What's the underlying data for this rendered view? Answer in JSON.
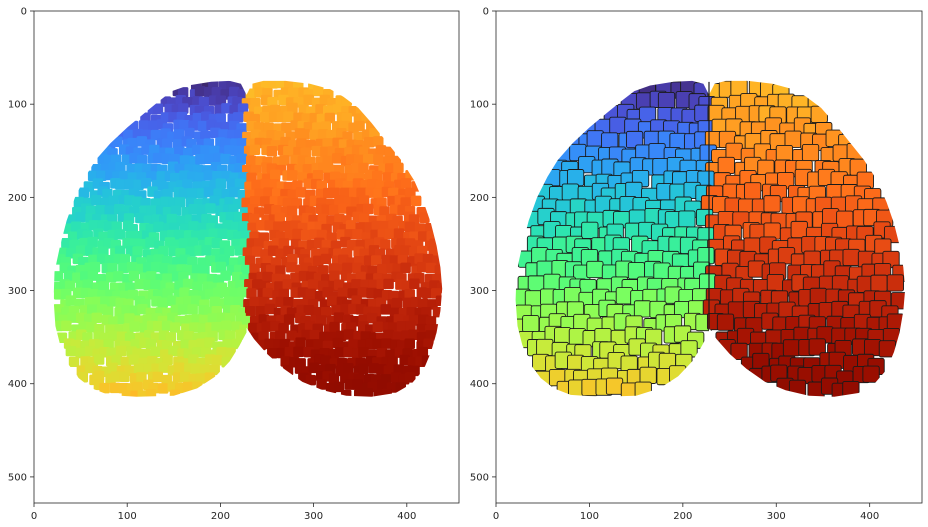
{
  "chart_data": [
    {
      "type": "heatmap",
      "description_kind": "image",
      "title": "",
      "xlabel": "",
      "ylabel": "",
      "xlim": [
        0,
        456
      ],
      "ylim": [
        528,
        0
      ],
      "xticks": [
        0,
        100,
        200,
        300,
        400
      ],
      "yticks": [
        0,
        100,
        200,
        300,
        400,
        500
      ],
      "xtick_labels": [
        "0",
        "100",
        "200",
        "300",
        "400"
      ],
      "ytick_labels": [
        "0",
        "100",
        "200",
        "300",
        "400",
        "500"
      ],
      "colormap": "turbo",
      "cell_borders": false,
      "hemispheres": {
        "left": {
          "x_range": [
            22,
            228
          ],
          "y_range": [
            72,
            414
          ],
          "color_start": "#30123b",
          "color_end": "#a4fc3c"
        },
        "right": {
          "x_range": [
            228,
            436
          ],
          "y_range": [
            72,
            414
          ],
          "color_start": "#a4fc3c",
          "color_end": "#7a0403"
        }
      }
    },
    {
      "type": "heatmap",
      "description_kind": "image",
      "title": "",
      "xlabel": "",
      "ylabel": "",
      "xlim": [
        0,
        456
      ],
      "ylim": [
        528,
        0
      ],
      "xticks": [
        0,
        100,
        200,
        300,
        400
      ],
      "yticks": [
        0,
        100,
        200,
        300,
        400,
        500
      ],
      "xtick_labels": [
        "0",
        "100",
        "200",
        "300",
        "400"
      ],
      "ytick_labels": [
        "0",
        "100",
        "200",
        "300",
        "400",
        "500"
      ],
      "colormap": "turbo",
      "cell_borders": true,
      "hemispheres": {
        "left": {
          "x_range": [
            22,
            228
          ],
          "y_range": [
            72,
            414
          ],
          "color_start": "#30123b",
          "color_end": "#a4fc3c"
        },
        "right": {
          "x_range": [
            228,
            436
          ],
          "y_range": [
            72,
            414
          ],
          "color_start": "#a4fc3c",
          "color_end": "#7a0403"
        }
      }
    }
  ],
  "colors": {
    "axis": "#262626",
    "background": "#ffffff",
    "cell_border": "#1a1a1a"
  }
}
